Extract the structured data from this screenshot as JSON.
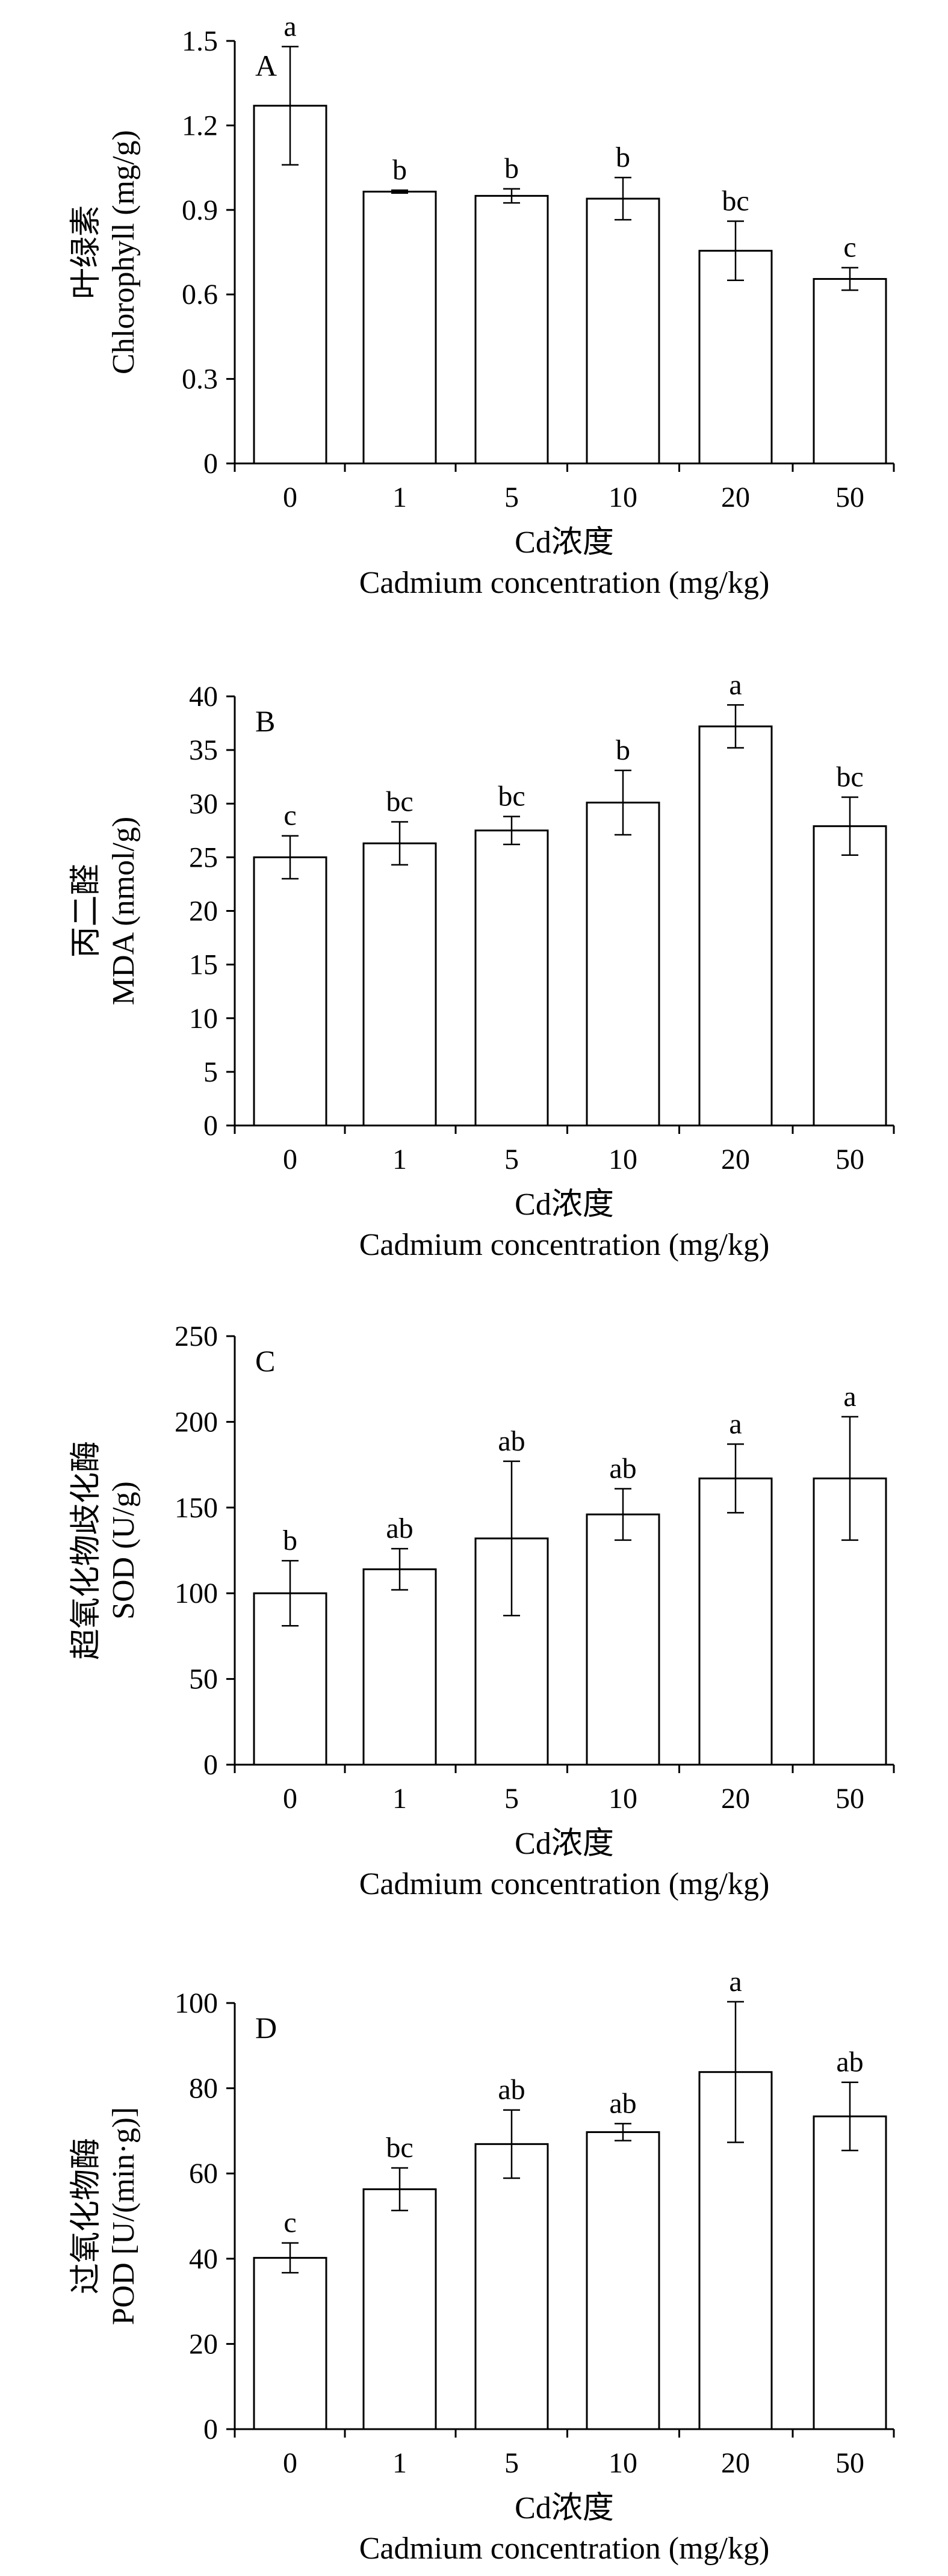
{
  "figure": {
    "xlabel_cn": "Cd浓度",
    "xlabel_en": "Cadmium concentration (mg/kg)"
  },
  "chart_data": [
    {
      "type": "bar",
      "panel": "A",
      "categories": [
        "0",
        "1",
        "5",
        "10",
        "20",
        "50"
      ],
      "values": [
        1.27,
        0.965,
        0.95,
        0.94,
        0.755,
        0.655
      ],
      "errors": [
        0.21,
        0.005,
        0.025,
        0.075,
        0.105,
        0.04
      ],
      "letters": [
        "a",
        "b",
        "b",
        "b",
        "bc",
        "c"
      ],
      "ylabel_cn": "叶绿素",
      "ylabel_en": "Chlorophyll (mg/g)",
      "xlabel_cn": "Cd浓度",
      "xlabel_en": "Cadmium concentration (mg/kg)",
      "ylim": [
        0,
        1.5
      ],
      "yticks": [
        "0",
        "0.3",
        "0.6",
        "0.9",
        "1.2",
        "1.5"
      ]
    },
    {
      "type": "bar",
      "panel": "B",
      "categories": [
        "0",
        "1",
        "5",
        "10",
        "20",
        "50"
      ],
      "values": [
        25.0,
        26.3,
        27.5,
        30.1,
        37.2,
        27.9
      ],
      "errors": [
        2.0,
        2.0,
        1.3,
        3.0,
        2.0,
        2.7
      ],
      "letters": [
        "c",
        "bc",
        "bc",
        "b",
        "a",
        "bc"
      ],
      "ylabel_cn": "丙二醛",
      "ylabel_en": "MDA (nmol/g)",
      "xlabel_cn": "Cd浓度",
      "xlabel_en": "Cadmium concentration (mg/kg)",
      "ylim": [
        0,
        40
      ],
      "yticks": [
        "0",
        "5",
        "10",
        "15",
        "20",
        "25",
        "30",
        "35",
        "40"
      ]
    },
    {
      "type": "bar",
      "panel": "C",
      "categories": [
        "0",
        "1",
        "5",
        "10",
        "20",
        "50"
      ],
      "values": [
        100,
        114,
        132,
        146,
        167,
        167
      ],
      "errors": [
        19,
        12,
        45,
        15,
        20,
        36
      ],
      "letters": [
        "b",
        "ab",
        "ab",
        "ab",
        "a",
        "a"
      ],
      "ylabel_cn": "超氧化物歧化酶",
      "ylabel_en": "SOD (U/g)",
      "xlabel_cn": "Cd浓度",
      "xlabel_en": "Cadmium concentration (mg/kg)",
      "ylim": [
        0,
        250
      ],
      "yticks": [
        "0",
        "50",
        "100",
        "150",
        "200",
        "250"
      ]
    },
    {
      "type": "bar",
      "panel": "D",
      "categories": [
        "0",
        "1",
        "5",
        "10",
        "20",
        "50"
      ],
      "values": [
        40.2,
        56.3,
        66.9,
        69.7,
        83.8,
        73.4
      ],
      "errors": [
        3.5,
        5.0,
        8.0,
        2.0,
        16.5,
        8.0
      ],
      "letters": [
        "c",
        "bc",
        "ab",
        "ab",
        "a",
        "ab"
      ],
      "ylabel_cn": "过氧化物酶",
      "ylabel_en": "POD [U/(min·g)]",
      "xlabel_cn": "Cd浓度",
      "xlabel_en": "Cadmium concentration (mg/kg)",
      "ylim": [
        0,
        100
      ],
      "yticks": [
        "0",
        "20",
        "40",
        "60",
        "80",
        "100"
      ]
    }
  ]
}
